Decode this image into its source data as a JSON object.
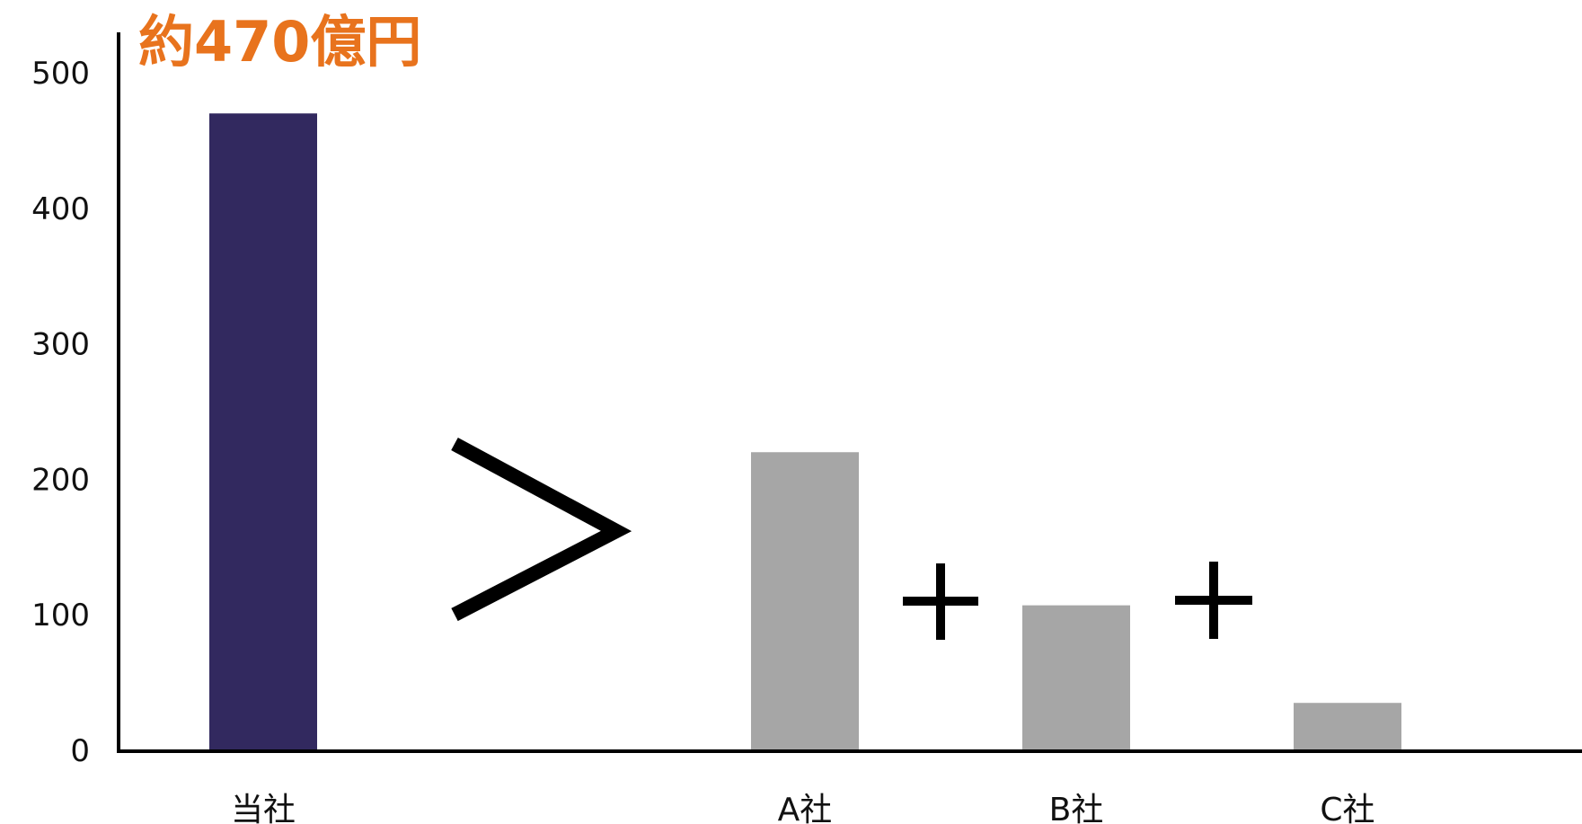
{
  "chart_data": {
    "type": "bar",
    "categories": [
      "当社",
      "",
      "A社",
      "B社",
      "C社"
    ],
    "values": [
      470,
      null,
      220,
      107,
      35
    ],
    "ylim": [
      0,
      500
    ],
    "yticks": [
      0,
      100,
      200,
      300,
      400,
      500
    ],
    "grid": false,
    "annotation": "約470億円",
    "comparison_symbol": ">",
    "operators": [
      "+",
      "+"
    ]
  },
  "colors": {
    "highlight_bar": "#32295f",
    "other_bars": "#a6a6a6",
    "annotation": "#e8731d",
    "axis": "#000000"
  }
}
